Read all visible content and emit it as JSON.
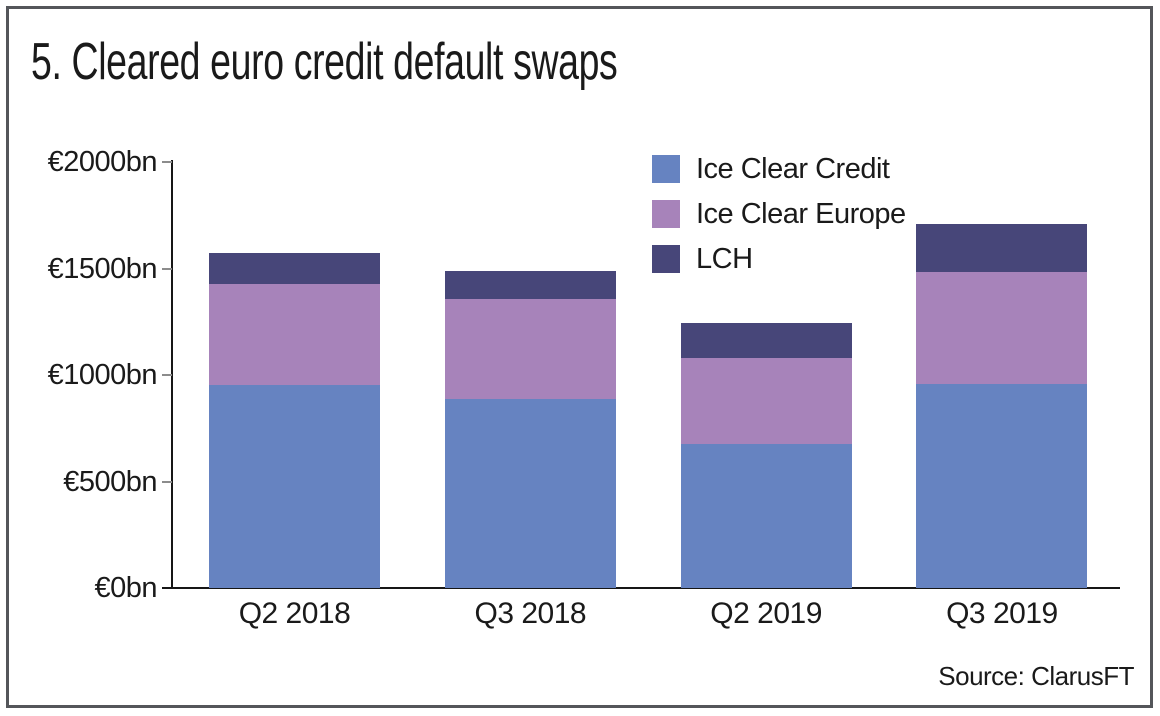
{
  "title": "5. Cleared euro credit default swaps",
  "source": "Source: ClarusFT",
  "colors": {
    "ice_clear_credit": "#6683c1",
    "ice_clear_europe": "#a783ba",
    "lch": "#474679",
    "axis": "#161616",
    "tick": "#8c8c8c",
    "frame_border": "#54565a",
    "text": "#1a1a1a",
    "background": "#ffffff"
  },
  "chart_data": {
    "type": "bar",
    "stacked": true,
    "title": "5. Cleared euro credit default swaps",
    "categories": [
      "Q2 2018",
      "Q3 2018",
      "Q2 2019",
      "Q3 2019"
    ],
    "series": [
      {
        "name": "Ice Clear Credit",
        "color": "#6683c1",
        "values": [
          955,
          885,
          675,
          960
        ]
      },
      {
        "name": "Ice Clear Europe",
        "color": "#a783ba",
        "values": [
          470,
          470,
          405,
          525
        ]
      },
      {
        "name": "LCH",
        "color": "#474679",
        "values": [
          150,
          135,
          165,
          225
        ]
      }
    ],
    "totals": [
      1575,
      1490,
      1245,
      1710
    ],
    "unit": "€bn",
    "ylim": [
      0,
      2000
    ],
    "yticks": [
      0,
      500,
      1000,
      1500,
      2000
    ],
    "ytick_labels": [
      "€0bn",
      "€500bn",
      "€1000bn",
      "€1500bn",
      "€2000bn"
    ],
    "xlabel": "",
    "ylabel": "",
    "grid": false,
    "legend_position": "upper-right-inside",
    "legend_entries": [
      "Ice Clear Credit",
      "Ice Clear Europe",
      "LCH"
    ],
    "source": "Source: ClarusFT"
  }
}
